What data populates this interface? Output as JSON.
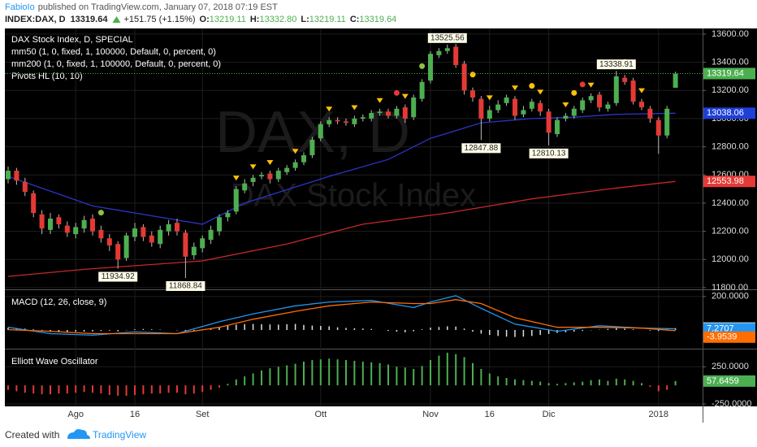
{
  "header": {
    "author": "FabioIo",
    "published": "published on TradingView.com, January 07, 2018 07:19 EST",
    "symbol": "INDEX:DAX, D",
    "last": "13319.64",
    "change": "+151.75 (+1.15%)",
    "ohlc": [
      {
        "key": "O:",
        "value": "13219.11"
      },
      {
        "key": "H:",
        "value": "13332.80"
      },
      {
        "key": "L:",
        "value": "13219.11"
      },
      {
        "key": "C:",
        "value": "13319.64"
      }
    ]
  },
  "footer": {
    "created": "Created with",
    "brand": "TradingView"
  },
  "chart_data": [
    {
      "type": "candlestick",
      "title": "DAX Stock Index, D, SPECIAL",
      "watermark": [
        "DAX, D",
        "DAX Stock Index"
      ],
      "categories": [
        null,
        null,
        null,
        null,
        null,
        null,
        null,
        null,
        "Ago",
        null,
        null,
        null,
        null,
        null,
        null,
        "16",
        null,
        null,
        null,
        null,
        null,
        null,
        null,
        "Set",
        null,
        null,
        null,
        null,
        null,
        null,
        null,
        null,
        null,
        null,
        null,
        null,
        null,
        "Ott",
        null,
        null,
        null,
        null,
        null,
        null,
        null,
        null,
        null,
        null,
        null,
        null,
        "Nov",
        null,
        null,
        null,
        null,
        null,
        null,
        "16",
        null,
        null,
        null,
        null,
        null,
        null,
        "Dic",
        null,
        null,
        null,
        null,
        null,
        null,
        null,
        null,
        null,
        null,
        null,
        null,
        "2018",
        null,
        null
      ],
      "open": [
        12570,
        12630,
        12550,
        12470,
        12320,
        12210,
        12300,
        12240,
        12180,
        12220,
        12290,
        12210,
        12150,
        12110,
        12010,
        12160,
        12230,
        12170,
        12110,
        12200,
        12260,
        12190,
        12030,
        12080,
        12140,
        12200,
        12300,
        12340,
        12490,
        12550,
        12590,
        12610,
        12570,
        12620,
        12650,
        12690,
        12740,
        12860,
        12960,
        12990,
        12980,
        12960,
        13000,
        13000,
        13040,
        13050,
        13020,
        13080,
        13010,
        13140,
        13270,
        13450,
        13480,
        13510,
        13390,
        13200,
        13140,
        13000,
        13060,
        13110,
        13140,
        13030,
        13070,
        13110,
        13050,
        12890,
        13000,
        13020,
        13060,
        13130,
        13170,
        13070,
        13110,
        13290,
        13270,
        13120,
        13070,
        12990,
        12880,
        13219.11
      ],
      "high": [
        12660,
        12650,
        12580,
        12490,
        12350,
        12330,
        12320,
        12270,
        12260,
        12310,
        12320,
        12240,
        12180,
        12130,
        12190,
        12260,
        12250,
        12200,
        12240,
        12280,
        12290,
        12210,
        12120,
        12170,
        12240,
        12320,
        12350,
        12520,
        12570,
        12600,
        12620,
        12630,
        12650,
        12670,
        12710,
        12760,
        12870,
        12980,
        13010,
        13010,
        13000,
        13020,
        13030,
        13060,
        13070,
        13070,
        13090,
        13100,
        13170,
        13280,
        13480,
        13500,
        13525.56,
        13530,
        13410,
        13220,
        13160,
        13090,
        13130,
        13170,
        13160,
        13090,
        13140,
        13130,
        13070,
        13010,
        13040,
        13090,
        13150,
        13180,
        13190,
        13120,
        13338.91,
        13310,
        13290,
        13140,
        13090,
        13010,
        13090,
        13332.8
      ],
      "low": [
        12540,
        12530,
        12450,
        12300,
        12180,
        12180,
        12220,
        12160,
        12150,
        12190,
        12170,
        12120,
        12060,
        11934.92,
        11990,
        12130,
        12130,
        12090,
        12080,
        12170,
        12170,
        11868.84,
        12000,
        12050,
        12110,
        12170,
        12270,
        12320,
        12470,
        12520,
        12570,
        12540,
        12550,
        12600,
        12630,
        12670,
        12720,
        12840,
        12940,
        12960,
        12950,
        12940,
        12980,
        12980,
        13020,
        13000,
        13000,
        12970,
        12990,
        13120,
        13250,
        13430,
        13460,
        13360,
        13170,
        13120,
        12847.88,
        12980,
        13040,
        13090,
        12990,
        13010,
        13050,
        13020,
        12810.13,
        12870,
        12980,
        13000,
        13040,
        13110,
        13050,
        13050,
        13090,
        13240,
        13100,
        13060,
        12970,
        12750,
        12860,
        13219.11
      ],
      "close": [
        12630,
        12560,
        12480,
        12330,
        12220,
        12290,
        12250,
        12190,
        12230,
        12280,
        12200,
        12150,
        12100,
        12000,
        12170,
        12220,
        12160,
        12120,
        12210,
        12250,
        12200,
        12020,
        12090,
        12150,
        12210,
        12300,
        12330,
        12500,
        12540,
        12580,
        12600,
        12570,
        12630,
        12650,
        12690,
        12740,
        12850,
        12960,
        12990,
        12980,
        12970,
        13000,
        13010,
        13040,
        13050,
        13020,
        13070,
        13000,
        13150,
        13260,
        13460,
        13480,
        13500,
        13380,
        13200,
        13150,
        13000,
        13060,
        13100,
        13150,
        13020,
        13060,
        13120,
        13050,
        12900,
        12990,
        13020,
        13070,
        13130,
        13160,
        13080,
        13100,
        13300,
        13260,
        13120,
        13080,
        13000,
        12880,
        13070,
        13319.64
      ],
      "up_color": "#4caf50",
      "down_color": "#e53935",
      "series": [
        {
          "name": "mm50 (1, 0, fixed, 1, 100000, Default, 0, percent, 0)",
          "color": "#2b35c8",
          "tag_color": "#1e3fd8",
          "x": [
            0,
            10,
            19,
            23,
            28,
            38,
            45,
            50,
            56,
            62,
            67,
            72,
            79
          ],
          "values": [
            12590,
            12380,
            12290,
            12250,
            12400,
            12590,
            12710,
            12860,
            12970,
            13000,
            13010,
            13030,
            13038.06
          ]
        },
        {
          "name": "mm200 (1, 0, fixed, 1, 100000, Default, 0, percent, 0)",
          "color": "#c62828",
          "tag_color": "#e53935",
          "x": [
            0,
            9,
            23,
            33,
            42,
            52,
            62,
            71,
            79
          ],
          "values": [
            11880,
            11930,
            11990,
            12110,
            12250,
            12330,
            12430,
            12500,
            12553.98
          ]
        }
      ],
      "pivots": {
        "name": "Pivots HL (10, 10)",
        "highs": [
          52,
          72
        ],
        "lows": [
          13,
          21,
          56,
          64
        ]
      },
      "markers": [
        {
          "x": 27,
          "shape": "triangle",
          "color": "#ffc107"
        },
        {
          "x": 29,
          "shape": "triangle",
          "color": "#ffc107"
        },
        {
          "x": 31,
          "shape": "triangle",
          "color": "#ffc107"
        },
        {
          "x": 34,
          "shape": "triangle",
          "color": "#ffc107"
        },
        {
          "x": 38,
          "shape": "triangle",
          "color": "#ffc107"
        },
        {
          "x": 41,
          "shape": "triangle",
          "color": "#ffc107"
        },
        {
          "x": 44,
          "shape": "triangle",
          "color": "#ffc107"
        },
        {
          "x": 47,
          "shape": "triangle",
          "color": "#ffc107"
        },
        {
          "x": 57,
          "shape": "triangle",
          "color": "#ffc107"
        },
        {
          "x": 60,
          "shape": "triangle",
          "color": "#ffc107"
        },
        {
          "x": 63,
          "shape": "triangle",
          "color": "#ffc107"
        },
        {
          "x": 66,
          "shape": "triangle",
          "color": "#ffc107"
        },
        {
          "x": 69,
          "shape": "triangle",
          "color": "#ffc107"
        },
        {
          "x": 75,
          "shape": "triangle",
          "color": "#ffc107"
        },
        {
          "x": 46,
          "shape": "circle",
          "color": "#e53935"
        },
        {
          "x": 68,
          "shape": "circle",
          "color": "#e53935"
        },
        {
          "x": 11,
          "shape": "circle",
          "color": "#8bc34a"
        },
        {
          "x": 49,
          "shape": "circle",
          "color": "#8bc34a"
        },
        {
          "x": 55,
          "shape": "circle",
          "color": "#ffc107"
        },
        {
          "x": 62,
          "shape": "circle",
          "color": "#ffc107"
        },
        {
          "x": 67,
          "shape": "circle",
          "color": "#ffc107"
        },
        {
          "x": 73,
          "shape": "circle",
          "color": "#ffc107"
        }
      ],
      "ylim": [
        11788,
        13640
      ],
      "yticks": [
        {
          "value": 11800,
          "label": "11800.00"
        },
        {
          "value": 12000,
          "label": "12000.00"
        },
        {
          "value": 12200,
          "label": "12200.00"
        },
        {
          "value": 12400,
          "label": "12400.00"
        },
        {
          "value": 12600,
          "label": "12600.00"
        },
        {
          "value": 12800,
          "label": "12800.00"
        },
        {
          "value": 13000,
          "label": "13000.00"
        },
        {
          "value": 13200,
          "label": "13200.00"
        },
        {
          "value": 13400,
          "label": "13400.00"
        },
        {
          "value": 13600,
          "label": "13600.00"
        }
      ],
      "grid": true
    },
    {
      "type": "macd",
      "title": "MACD (12, 26, close, 9)",
      "ylim": [
        -107,
        238
      ],
      "yticks": [
        {
          "value": 200,
          "label": "200.0000"
        }
      ],
      "histogram": {
        "color": "#e0e0e0",
        "tag_color": "#f5f0e6",
        "values": [
          14,
          12,
          8,
          4,
          -6,
          -12,
          -14,
          -12,
          -10,
          -10,
          -9,
          -6,
          -4,
          -8,
          -2,
          4,
          6,
          4,
          2,
          0,
          -2,
          -10,
          -6,
          0,
          8,
          18,
          26,
          32,
          35,
          36,
          34,
          33,
          32,
          34,
          36,
          30,
          26,
          24,
          22,
          16,
          12,
          10,
          8,
          6,
          0,
          -6,
          -10,
          -14,
          -8,
          4,
          14,
          18,
          22,
          20,
          8,
          -10,
          -22,
          -30,
          -36,
          -40,
          -42,
          -40,
          -36,
          -30,
          -24,
          -18,
          -14,
          -10,
          -6,
          -2,
          2,
          6,
          10,
          8,
          4,
          0,
          -4,
          -6,
          4,
          11.2245
        ]
      },
      "series": [
        {
          "color": "#2196f3",
          "x": [
            0,
            5,
            10,
            15,
            20,
            25,
            29,
            34,
            38,
            43,
            48,
            50,
            53,
            56,
            60,
            65,
            70,
            75,
            79
          ],
          "values": [
            16,
            -22,
            -31,
            -12,
            -22,
            49,
            96,
            144,
            167,
            177,
            134,
            167,
            205,
            129,
            35,
            -8,
            25,
            11,
            7.2707
          ]
        },
        {
          "color": "#ff6d00",
          "x": [
            0,
            5,
            10,
            15,
            20,
            25,
            29,
            34,
            38,
            43,
            48,
            50,
            53,
            56,
            60,
            65,
            70,
            75,
            79
          ],
          "values": [
            2,
            -8,
            -22,
            -22,
            -22,
            16,
            64,
            111,
            144,
            167,
            158,
            158,
            181,
            158,
            73,
            16,
            16,
            11,
            -3.9539
          ]
        }
      ],
      "grid": true
    },
    {
      "type": "bar",
      "title": "Elliott Wave Oscillator",
      "ylim": [
        -283,
        483
      ],
      "yticks": [
        {
          "value": 250,
          "label": "250.0000"
        },
        {
          "value": -250,
          "label": "-250.0000"
        }
      ],
      "positive_color": "#4caf50",
      "negative_color": "#e53935",
      "values": [
        -60,
        -80,
        -100,
        -110,
        -120,
        -120,
        -110,
        -110,
        -100,
        -90,
        -100,
        -110,
        -130,
        -140,
        -140,
        -130,
        -120,
        -110,
        -110,
        -100,
        -100,
        -120,
        -110,
        -90,
        -60,
        -30,
        20,
        80,
        120,
        160,
        200,
        230,
        250,
        270,
        290,
        320,
        340,
        350,
        360,
        350,
        340,
        330,
        320,
        310,
        300,
        280,
        250,
        240,
        220,
        260,
        340,
        400,
        440,
        420,
        380,
        300,
        220,
        160,
        120,
        100,
        80,
        70,
        60,
        50,
        30,
        20,
        30,
        40,
        50,
        70,
        80,
        60,
        90,
        80,
        60,
        30,
        -20,
        -80,
        -60,
        57.6459
      ],
      "grid": true
    }
  ]
}
